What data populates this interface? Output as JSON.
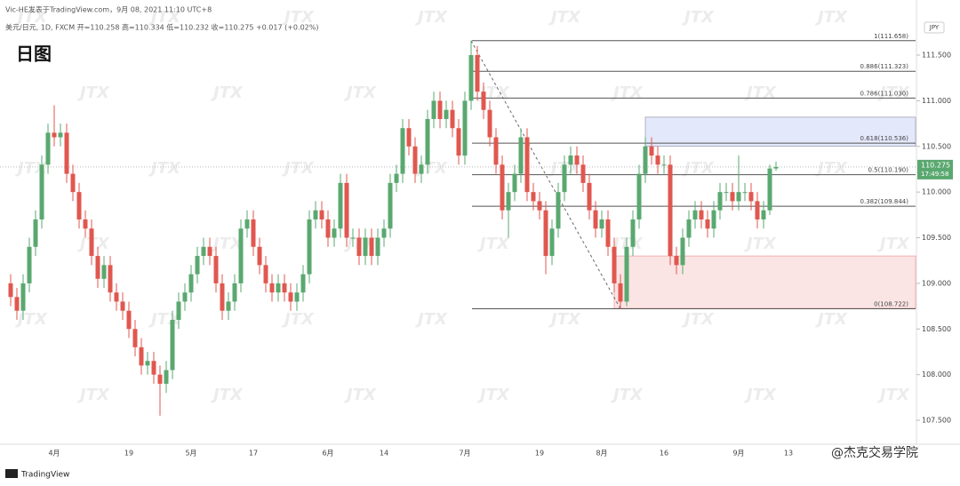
{
  "header": {
    "author_line": "Vic-HE发表于TradingView.com，9月 08, 2021 11:10 UTC+8",
    "legend_line": "美元/日元, 1D, FXCM  开=110.258  高=110.334  低=110.232  收=110.275  +0.017 (+0.02%)",
    "timeframe_label": "日图",
    "currency": "JPY"
  },
  "footer": {
    "logo": "TradingView",
    "credit": "@杰克交易学院",
    "watermark": "JTX"
  },
  "chart_data": {
    "type": "candlestick",
    "up_color": "#5aa870",
    "down_color": "#e0574f",
    "categories": [
      null,
      null,
      null,
      null,
      null,
      null,
      null,
      "4月",
      null,
      null,
      null,
      null,
      null,
      null,
      null,
      null,
      null,
      null,
      null,
      "19",
      null,
      null,
      null,
      null,
      null,
      null,
      null,
      null,
      null,
      "5月",
      null,
      null,
      null,
      null,
      null,
      null,
      null,
      null,
      null,
      "17",
      null,
      null,
      null,
      null,
      null,
      null,
      null,
      null,
      null,
      null,
      null,
      "6月",
      null,
      null,
      null,
      null,
      null,
      null,
      null,
      null,
      "14",
      null,
      null,
      null,
      null,
      null,
      null,
      null,
      null,
      null,
      null,
      null,
      null,
      "7月",
      null,
      null,
      null,
      null,
      null,
      null,
      null,
      null,
      null,
      null,
      null,
      "19",
      null,
      null,
      null,
      null,
      null,
      null,
      null,
      null,
      null,
      "8月",
      null,
      null,
      null,
      null,
      null,
      null,
      null,
      null,
      null,
      "16",
      null,
      null,
      null,
      null,
      null,
      null,
      null,
      null,
      null,
      null,
      null,
      "9月",
      null,
      null,
      null,
      null,
      null,
      null,
      null,
      "13"
    ],
    "open": [
      109.0,
      108.85,
      108.7,
      109.0,
      109.4,
      109.7,
      110.3,
      110.65,
      110.6,
      110.65,
      110.2,
      110.0,
      109.7,
      109.6,
      109.3,
      109.05,
      109.2,
      108.9,
      108.8,
      108.7,
      108.5,
      108.3,
      108.1,
      108.15,
      108.0,
      107.9,
      108.05,
      108.6,
      108.8,
      108.9,
      109.1,
      109.3,
      109.4,
      109.3,
      109.0,
      108.7,
      108.8,
      109.0,
      109.6,
      109.7,
      109.4,
      109.2,
      109.0,
      108.9,
      109.0,
      108.9,
      108.8,
      108.9,
      109.1,
      109.7,
      109.8,
      109.7,
      109.5,
      109.6,
      110.1,
      109.5,
      109.5,
      109.3,
      109.5,
      109.3,
      109.5,
      109.6,
      110.1,
      110.2,
      110.7,
      110.5,
      110.2,
      110.3,
      110.8,
      111.0,
      110.8,
      110.9,
      110.7,
      110.4,
      111.0,
      111.5,
      111.1,
      110.9,
      110.6,
      110.3,
      109.8,
      110.0,
      110.2,
      110.6,
      110.0,
      109.9,
      109.8,
      109.3,
      109.6,
      110.0,
      110.3,
      110.4,
      110.3,
      110.1,
      109.8,
      109.6,
      109.7,
      109.4,
      109.0,
      108.8,
      109.4,
      109.7,
      110.2,
      110.5,
      110.4,
      110.3,
      110.3,
      109.3,
      109.2,
      109.5,
      109.7,
      109.8,
      109.7,
      109.6,
      109.8,
      110.0,
      110.0,
      109.9,
      110.0,
      110.0,
      109.9,
      109.7,
      109.8,
      110.258,
      null,
      null
    ],
    "high": [
      109.1,
      108.95,
      109.1,
      109.5,
      109.8,
      110.4,
      110.75,
      110.95,
      110.75,
      110.75,
      110.3,
      110.1,
      109.8,
      109.7,
      109.4,
      109.3,
      109.3,
      109.0,
      108.9,
      108.8,
      108.6,
      108.4,
      108.25,
      108.25,
      108.1,
      108.15,
      108.7,
      108.9,
      109.0,
      109.2,
      109.4,
      109.5,
      109.5,
      109.4,
      109.1,
      108.9,
      109.1,
      109.7,
      109.8,
      109.8,
      109.5,
      109.3,
      109.1,
      109.1,
      109.1,
      109.0,
      109.0,
      109.2,
      109.8,
      109.9,
      109.9,
      109.8,
      109.7,
      110.2,
      110.2,
      109.6,
      109.6,
      109.6,
      109.6,
      109.6,
      109.7,
      110.2,
      110.3,
      110.8,
      110.8,
      110.6,
      110.4,
      110.9,
      111.1,
      111.1,
      111.0,
      111.0,
      110.8,
      111.1,
      111.658,
      111.6,
      111.2,
      111.0,
      110.7,
      110.4,
      110.1,
      110.3,
      110.7,
      110.7,
      110.1,
      110.0,
      109.9,
      109.7,
      110.1,
      110.4,
      110.5,
      110.5,
      110.4,
      110.2,
      109.9,
      109.8,
      109.8,
      109.5,
      109.1,
      109.5,
      109.8,
      110.3,
      110.6,
      110.6,
      110.5,
      110.4,
      110.4,
      109.4,
      109.6,
      109.8,
      109.9,
      109.9,
      109.8,
      109.9,
      110.1,
      110.1,
      110.1,
      110.4,
      110.1,
      110.1,
      110.0,
      109.9,
      110.3,
      110.334,
      null,
      null
    ],
    "low": [
      108.75,
      108.6,
      108.6,
      108.9,
      109.3,
      109.6,
      110.2,
      110.5,
      110.5,
      110.1,
      109.9,
      109.6,
      109.5,
      109.2,
      108.95,
      108.95,
      108.8,
      108.7,
      108.6,
      108.4,
      108.2,
      108.0,
      108.0,
      107.9,
      107.55,
      107.8,
      107.95,
      108.5,
      108.7,
      108.8,
      109.0,
      109.2,
      109.2,
      108.9,
      108.6,
      108.6,
      108.7,
      108.9,
      109.5,
      109.3,
      109.1,
      108.9,
      108.8,
      108.8,
      108.8,
      108.7,
      108.7,
      108.8,
      109.0,
      109.6,
      109.6,
      109.4,
      109.4,
      109.5,
      109.4,
      109.4,
      109.2,
      109.2,
      109.2,
      109.2,
      109.4,
      109.5,
      110.0,
      110.1,
      110.4,
      110.1,
      110.1,
      110.2,
      110.7,
      110.7,
      110.7,
      110.6,
      110.3,
      110.3,
      110.9,
      111.0,
      110.8,
      110.5,
      110.2,
      109.7,
      109.5,
      109.9,
      110.1,
      109.9,
      109.8,
      109.7,
      109.1,
      109.2,
      109.5,
      109.9,
      110.2,
      110.2,
      110.0,
      109.7,
      109.5,
      109.5,
      109.3,
      108.9,
      108.722,
      108.75,
      109.3,
      109.6,
      110.1,
      110.3,
      110.2,
      110.2,
      109.2,
      109.1,
      109.1,
      109.4,
      109.6,
      109.6,
      109.5,
      109.5,
      109.7,
      109.9,
      109.8,
      109.8,
      109.9,
      109.8,
      109.6,
      109.6,
      109.75,
      110.232,
      null,
      null
    ],
    "close": [
      108.85,
      108.7,
      109.0,
      109.4,
      109.7,
      110.3,
      110.65,
      110.6,
      110.65,
      110.2,
      110.0,
      109.7,
      109.6,
      109.3,
      109.05,
      109.2,
      108.9,
      108.8,
      108.7,
      108.5,
      108.3,
      108.1,
      108.15,
      108.0,
      107.9,
      108.05,
      108.6,
      108.8,
      108.9,
      109.1,
      109.3,
      109.4,
      109.3,
      109.0,
      108.7,
      108.8,
      109.0,
      109.6,
      109.7,
      109.4,
      109.2,
      109.0,
      108.9,
      109.0,
      108.9,
      108.8,
      108.9,
      109.1,
      109.7,
      109.8,
      109.7,
      109.5,
      109.6,
      110.1,
      109.5,
      109.5,
      109.3,
      109.5,
      109.3,
      109.5,
      109.6,
      110.1,
      110.2,
      110.7,
      110.5,
      110.2,
      110.3,
      110.8,
      111.0,
      110.8,
      110.9,
      110.7,
      110.4,
      111.0,
      111.5,
      111.1,
      110.9,
      110.6,
      110.3,
      109.8,
      110.0,
      110.2,
      110.6,
      110.0,
      109.9,
      109.8,
      109.3,
      109.6,
      110.0,
      110.3,
      110.4,
      110.3,
      110.1,
      109.8,
      109.6,
      109.7,
      109.4,
      109.0,
      108.8,
      109.4,
      109.7,
      110.2,
      110.5,
      110.4,
      110.3,
      110.3,
      109.3,
      109.2,
      109.5,
      109.7,
      109.8,
      109.7,
      109.6,
      109.8,
      110.0,
      110.0,
      109.9,
      110.0,
      110.0,
      109.9,
      109.7,
      109.8,
      110.258,
      110.275,
      null,
      null
    ],
    "ylim": [
      107.257,
      111.909
    ],
    "yticks": [
      {
        "value": 111.5,
        "label": "111.500"
      },
      {
        "value": 111,
        "label": "111.000"
      },
      {
        "value": 110.5,
        "label": "110.500"
      },
      {
        "value": 110,
        "label": "110.000"
      },
      {
        "value": 109.5,
        "label": "109.500"
      },
      {
        "value": 109,
        "label": "109.000"
      },
      {
        "value": 108.5,
        "label": "108.500"
      },
      {
        "value": 108,
        "label": "108.000"
      },
      {
        "value": 107.5,
        "label": "107.500"
      }
    ],
    "last_price": 110.275,
    "countdown": "17:49:58",
    "fib_levels": [
      {
        "value": 111.658,
        "label": "1(111.658)"
      },
      {
        "value": 111.323,
        "label": "0.886(111.323)"
      },
      {
        "value": 111.03,
        "label": "0.786(111.030)"
      },
      {
        "value": 110.536,
        "label": "0.618(110.536)"
      },
      {
        "value": 110.19,
        "label": "0.5(110.190)"
      },
      {
        "value": 109.844,
        "label": "0.382(109.844)"
      },
      {
        "value": 108.722,
        "label": "0(108.722)"
      }
    ],
    "zones": [
      {
        "from": 110.5,
        "to": 110.82,
        "color": "#e4e8fb"
      },
      {
        "from": 108.726,
        "to": 109.3,
        "color": "#fbe4e4"
      }
    ]
  }
}
